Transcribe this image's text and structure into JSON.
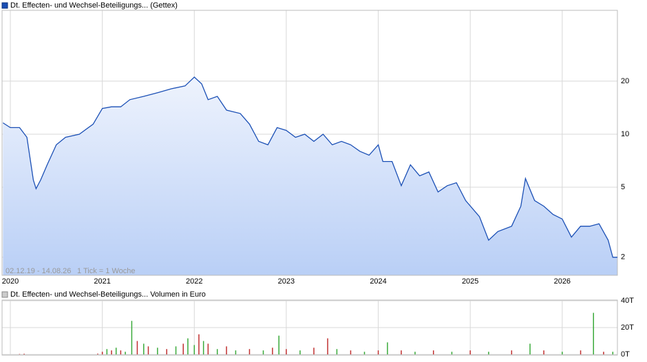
{
  "chart_data": [
    {
      "type": "line",
      "title": "Dt. Effecten- und Wechsel-Beteiligungs... (Gettex)",
      "annotations": [
        "02.12.19 - 14.08.26",
        "1 Tick = 1 Woche"
      ],
      "log_scale": true,
      "grid": true,
      "color": "#1a4fb5",
      "xlim": [
        2019.91,
        2026.6
      ],
      "xticks": [
        2020,
        2021,
        2022,
        2023,
        2024,
        2025,
        2026
      ],
      "ylim": [
        1.58,
        50.5
      ],
      "yticks": [
        20,
        10,
        5,
        2
      ],
      "x": [
        2019.92,
        2020.0,
        2020.1,
        2020.18,
        2020.25,
        2020.28,
        2020.33,
        2020.4,
        2020.5,
        2020.6,
        2020.75,
        2020.9,
        2021.0,
        2021.1,
        2021.2,
        2021.3,
        2021.45,
        2021.6,
        2021.75,
        2021.9,
        2022.0,
        2022.08,
        2022.15,
        2022.25,
        2022.35,
        2022.5,
        2022.6,
        2022.7,
        2022.8,
        2022.9,
        2023.0,
        2023.1,
        2023.2,
        2023.3,
        2023.4,
        2023.5,
        2023.6,
        2023.7,
        2023.8,
        2023.9,
        2024.0,
        2024.05,
        2024.15,
        2024.25,
        2024.35,
        2024.45,
        2024.55,
        2024.65,
        2024.75,
        2024.85,
        2024.95,
        2025.1,
        2025.2,
        2025.3,
        2025.45,
        2025.55,
        2025.6,
        2025.7,
        2025.8,
        2025.9,
        2026.0,
        2026.1,
        2026.2,
        2026.3,
        2026.4,
        2026.5,
        2026.55,
        2026.6
      ],
      "values": [
        11.6,
        10.9,
        10.9,
        9.6,
        5.5,
        4.9,
        5.5,
        6.7,
        8.7,
        9.6,
        10,
        11.4,
        14.0,
        14.3,
        14.3,
        15.7,
        16.4,
        17.2,
        18.1,
        18.8,
        21.1,
        19.3,
        15.7,
        16.4,
        13.7,
        13.1,
        11.4,
        9.1,
        8.7,
        10.9,
        10.5,
        9.6,
        10,
        9.1,
        10,
        8.7,
        9.1,
        8.7,
        8.0,
        7.6,
        8.7,
        7.0,
        7.0,
        5.1,
        6.7,
        5.8,
        6.1,
        4.7,
        5.1,
        5.3,
        4.2,
        3.4,
        2.5,
        2.8,
        3.0,
        3.9,
        5.6,
        4.2,
        3.9,
        3.5,
        3.3,
        2.6,
        3.0,
        3.0,
        3.1,
        2.5,
        2.0,
        2.0
      ]
    },
    {
      "type": "bar",
      "title": "Dt. Effecten- und Wechsel-Beteiligungs... Volumen in Euro",
      "grid": true,
      "xlim": [
        2019.91,
        2026.6
      ],
      "xticks": [
        2020,
        2021,
        2022,
        2023,
        2024,
        2025,
        2026
      ],
      "ylim": [
        0,
        40
      ],
      "yticks": [
        {
          "value": 40,
          "label": "40T"
        },
        {
          "value": 20,
          "label": "20T"
        },
        {
          "value": 0,
          "label": "0T"
        }
      ],
      "x": [
        2020.1,
        2020.15,
        2020.95,
        2021.0,
        2021.05,
        2021.1,
        2021.15,
        2021.2,
        2021.25,
        2021.32,
        2021.38,
        2021.45,
        2021.5,
        2021.6,
        2021.7,
        2021.8,
        2021.88,
        2021.93,
        2022.0,
        2022.05,
        2022.1,
        2022.15,
        2022.25,
        2022.35,
        2022.45,
        2022.6,
        2022.75,
        2022.85,
        2022.92,
        2023.0,
        2023.15,
        2023.3,
        2023.45,
        2023.55,
        2023.7,
        2023.85,
        2024.0,
        2024.1,
        2024.25,
        2024.4,
        2024.6,
        2024.8,
        2025.0,
        2025.2,
        2025.45,
        2025.65,
        2025.8,
        2026.0,
        2026.2,
        2026.34,
        2026.45,
        2026.55
      ],
      "values": [
        0.3,
        0.5,
        0.6,
        2,
        4,
        3,
        5,
        3,
        2,
        25,
        10,
        8,
        6,
        5,
        4,
        6,
        8,
        12,
        7,
        15,
        10,
        8,
        4,
        6,
        3,
        4,
        3,
        5,
        14,
        4,
        3,
        5,
        12,
        4,
        3,
        2,
        3,
        9,
        3,
        2,
        3,
        2,
        3,
        2,
        3,
        8,
        3,
        2,
        3,
        31,
        2,
        2
      ],
      "colors": [
        "#c03030",
        "#c03030",
        "#c03030",
        "#c03030",
        "#3aaa3a",
        "#c03030",
        "#3aaa3a",
        "#c03030",
        "#3aaa3a",
        "#3aaa3a",
        "#c03030",
        "#3aaa3a",
        "#c03030",
        "#3aaa3a",
        "#c03030",
        "#3aaa3a",
        "#c03030",
        "#3aaa3a",
        "#3aaa3a",
        "#c03030",
        "#3aaa3a",
        "#c03030",
        "#3aaa3a",
        "#c03030",
        "#3aaa3a",
        "#c03030",
        "#3aaa3a",
        "#c03030",
        "#3aaa3a",
        "#c03030",
        "#3aaa3a",
        "#c03030",
        "#c03030",
        "#3aaa3a",
        "#c03030",
        "#3aaa3a",
        "#c03030",
        "#3aaa3a",
        "#c03030",
        "#3aaa3a",
        "#c03030",
        "#3aaa3a",
        "#c03030",
        "#3aaa3a",
        "#c03030",
        "#3aaa3a",
        "#c03030",
        "#3aaa3a",
        "#c03030",
        "#3aaa3a",
        "#c03030",
        "#3aaa3a"
      ]
    }
  ]
}
